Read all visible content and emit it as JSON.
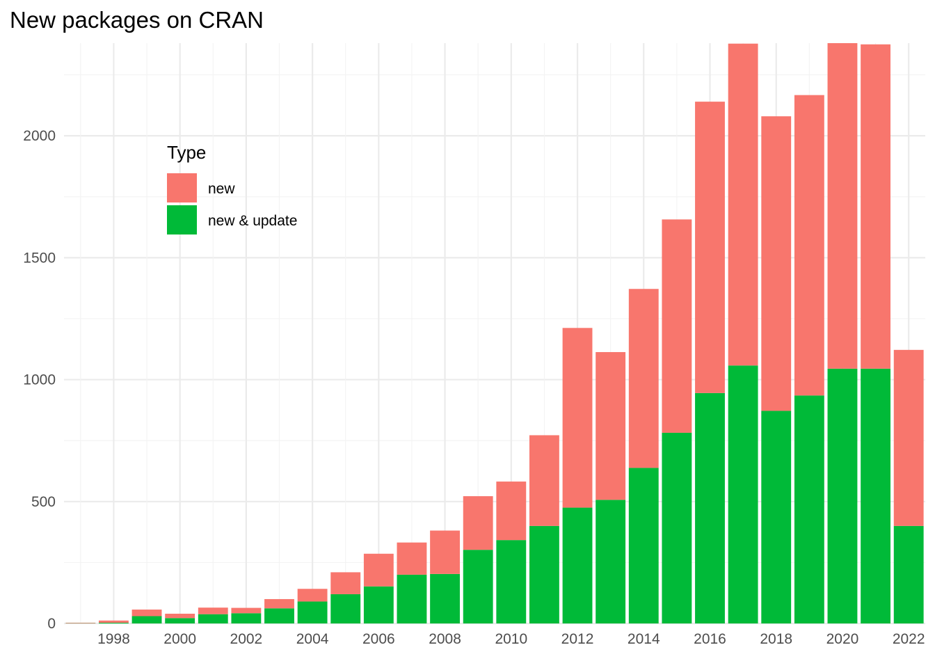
{
  "chart_data": {
    "type": "bar",
    "stacked": true,
    "title": "New packages on CRAN",
    "xlabel": "",
    "ylabel": "",
    "x": [
      1997,
      1998,
      1999,
      2000,
      2001,
      2002,
      2003,
      2004,
      2005,
      2006,
      2007,
      2008,
      2009,
      2010,
      2011,
      2012,
      2013,
      2014,
      2015,
      2016,
      2017,
      2018,
      2019,
      2020,
      2021,
      2022
    ],
    "x_ticks": [
      1998,
      2000,
      2002,
      2004,
      2006,
      2008,
      2010,
      2012,
      2014,
      2016,
      2018,
      2020,
      2022
    ],
    "ylim": [
      0,
      2380
    ],
    "y_ticks": [
      0,
      500,
      1000,
      1500,
      2000
    ],
    "grid": true,
    "legend": {
      "title": "Type",
      "placement": "top-left-inside"
    },
    "series": [
      {
        "name": "new & update",
        "color": "#00ba38",
        "values": [
          1,
          3,
          30,
          22,
          38,
          42,
          62,
          90,
          120,
          152,
          200,
          203,
          302,
          342,
          400,
          475,
          507,
          638,
          782,
          945,
          1058,
          872,
          935,
          1045,
          1045,
          400
        ]
      },
      {
        "name": "new",
        "color": "#f8766d",
        "values": [
          2,
          9,
          27,
          18,
          27,
          22,
          38,
          52,
          90,
          134,
          132,
          178,
          220,
          240,
          372,
          737,
          606,
          734,
          875,
          1195,
          1320,
          1208,
          1232,
          1335,
          1330,
          722
        ]
      }
    ]
  }
}
